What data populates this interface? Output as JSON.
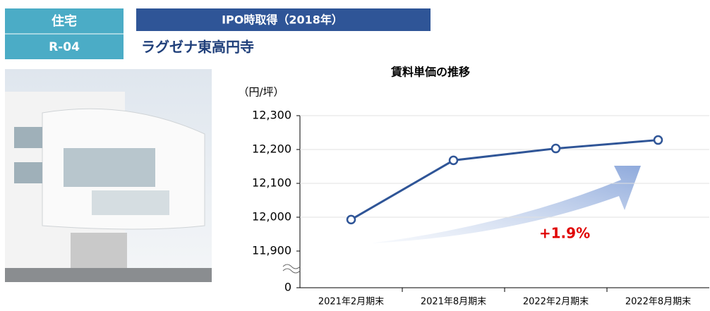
{
  "chart_data": {
    "type": "line",
    "category_label": "住宅",
    "code": "R-04",
    "acquisition": "IPO時取得（2018年）",
    "property_name": "ラグゼナ東高円寺",
    "title": "賃料単価の推移",
    "y_unit": "（円/坪）",
    "categories": [
      "2021年2月期末",
      "2021年8月期末",
      "2022年2月期末",
      "2022年8月期末"
    ],
    "series": [
      {
        "name": "賃料単価",
        "color": "#2f5597",
        "values": [
          11993,
          12168,
          12203,
          12228
        ]
      }
    ],
    "ylim": [
      0,
      12300
    ],
    "axis_break": [
      0,
      11900
    ],
    "yticks": [
      {
        "value": 0,
        "label": "0"
      },
      {
        "value": 11900,
        "label": "11,900"
      },
      {
        "value": 12000,
        "label": "12,000"
      },
      {
        "value": 12100,
        "label": "12,100"
      },
      {
        "value": 12200,
        "label": "12,200"
      },
      {
        "value": 12300,
        "label": "12,300"
      }
    ],
    "grid": true,
    "annotation": "+1.9%"
  }
}
